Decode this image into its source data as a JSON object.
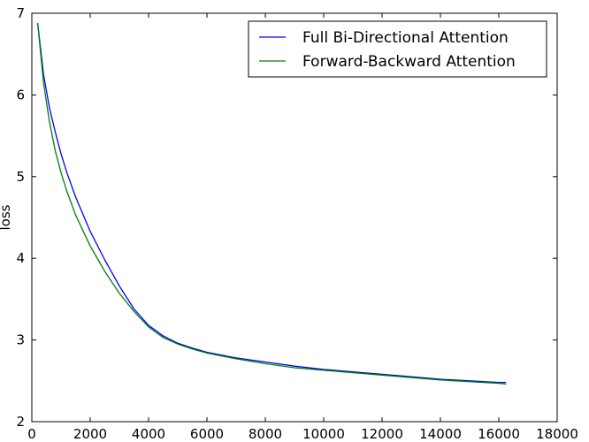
{
  "chart_data": {
    "type": "line",
    "title": "",
    "xlabel": "",
    "ylabel": "loss",
    "xlim": [
      0,
      18000
    ],
    "ylim": [
      2,
      7
    ],
    "xticks": [
      0,
      2000,
      4000,
      6000,
      8000,
      10000,
      12000,
      14000,
      16000,
      18000
    ],
    "yticks": [
      2,
      3,
      4,
      5,
      6,
      7
    ],
    "grid": false,
    "legend_position": "top-right",
    "x": [
      200,
      400,
      600,
      800,
      1000,
      1200,
      1500,
      2000,
      2500,
      3000,
      3500,
      4000,
      4500,
      5000,
      5500,
      6000,
      7000,
      8000,
      9000,
      10000,
      11000,
      12000,
      13000,
      14000,
      15000,
      16000,
      16250
    ],
    "series": [
      {
        "name": "Full Bi-Directional Attention",
        "color": "#0000ff",
        "values": [
          6.88,
          6.25,
          5.85,
          5.55,
          5.28,
          5.05,
          4.75,
          4.33,
          3.98,
          3.66,
          3.38,
          3.18,
          3.05,
          2.96,
          2.9,
          2.85,
          2.78,
          2.73,
          2.68,
          2.64,
          2.61,
          2.58,
          2.55,
          2.52,
          2.5,
          2.48,
          2.48
        ]
      },
      {
        "name": "Forward-Backward Attention",
        "color": "#008000",
        "values": [
          6.88,
          6.15,
          5.68,
          5.32,
          5.05,
          4.82,
          4.53,
          4.15,
          3.84,
          3.57,
          3.35,
          3.16,
          3.03,
          2.95,
          2.89,
          2.84,
          2.77,
          2.71,
          2.66,
          2.63,
          2.6,
          2.57,
          2.54,
          2.51,
          2.49,
          2.47,
          2.46
        ]
      }
    ]
  }
}
